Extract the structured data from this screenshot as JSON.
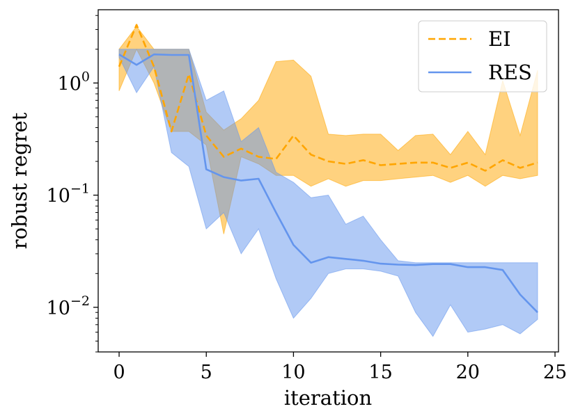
{
  "chart_data": {
    "type": "line",
    "title": "",
    "xlabel": "iteration",
    "ylabel": "robust regret",
    "yscale": "log",
    "xlim": [
      -1.2,
      25.2
    ],
    "ylim": [
      0.004,
      4.5
    ],
    "xticks": [
      0,
      5,
      10,
      15,
      20,
      25
    ],
    "xtick_labels": [
      "0",
      "5",
      "10",
      "15",
      "20",
      "25"
    ],
    "yticks": [
      0.01,
      0.1,
      1
    ],
    "ytick_labels": [
      {
        "base": "10",
        "exp": "−2"
      },
      {
        "base": "10",
        "exp": "−1"
      },
      {
        "base": "10",
        "exp": "0"
      }
    ],
    "legend_position": "top-right",
    "series": [
      {
        "name": "EI",
        "color": "#FFA500",
        "fill_color": "#FFA500",
        "line_style": "dashed",
        "x": [
          0,
          1,
          2,
          3,
          4,
          5,
          6,
          7,
          8,
          9,
          10,
          11,
          12,
          13,
          14,
          15,
          16,
          17,
          18,
          19,
          20,
          21,
          22,
          23,
          24
        ],
        "values": [
          1.4,
          3.3,
          1.4,
          0.37,
          1.2,
          0.34,
          0.22,
          0.26,
          0.22,
          0.21,
          0.34,
          0.23,
          0.2,
          0.19,
          0.205,
          0.185,
          0.19,
          0.195,
          0.195,
          0.175,
          0.195,
          0.165,
          0.205,
          0.175,
          0.195
        ],
        "upper": [
          2.0,
          3.2,
          2.0,
          2.0,
          2.0,
          0.55,
          0.38,
          0.48,
          0.7,
          1.55,
          1.6,
          1.15,
          0.35,
          0.34,
          0.35,
          0.35,
          0.25,
          0.34,
          0.35,
          0.23,
          0.37,
          0.23,
          1.05,
          0.34,
          1.3
        ],
        "lower": [
          0.85,
          2.0,
          1.0,
          0.37,
          0.37,
          0.28,
          0.045,
          0.22,
          0.19,
          0.15,
          0.15,
          0.12,
          0.14,
          0.12,
          0.135,
          0.135,
          0.14,
          0.145,
          0.15,
          0.13,
          0.15,
          0.12,
          0.15,
          0.14,
          0.15
        ]
      },
      {
        "name": "RES",
        "color": "#6495ED",
        "fill_color": "#6495ED",
        "line_style": "solid",
        "x": [
          0,
          1,
          2,
          3,
          4,
          5,
          6,
          7,
          8,
          9,
          10,
          11,
          12,
          13,
          14,
          15,
          16,
          17,
          18,
          19,
          20,
          21,
          22,
          23,
          24
        ],
        "values": [
          1.8,
          1.45,
          1.8,
          1.78,
          1.78,
          0.17,
          0.145,
          0.135,
          0.14,
          0.07,
          0.036,
          0.025,
          0.028,
          0.027,
          0.026,
          0.0245,
          0.024,
          0.0238,
          0.0243,
          0.0243,
          0.0228,
          0.0228,
          0.0215,
          0.013,
          0.009
        ],
        "upper": [
          2.0,
          2.0,
          2.0,
          2.0,
          2.0,
          0.7,
          0.85,
          0.3,
          0.4,
          0.16,
          0.13,
          0.095,
          0.1,
          0.055,
          0.065,
          0.04,
          0.026,
          0.025,
          0.025,
          0.025,
          0.025,
          0.025,
          0.025,
          0.025,
          0.025
        ],
        "lower": [
          1.7,
          0.82,
          1.4,
          0.24,
          0.18,
          0.05,
          0.07,
          0.03,
          0.05,
          0.018,
          0.008,
          0.012,
          0.02,
          0.022,
          0.022,
          0.021,
          0.019,
          0.009,
          0.0055,
          0.0105,
          0.006,
          0.0064,
          0.007,
          0.0058,
          0.0078
        ]
      }
    ]
  }
}
